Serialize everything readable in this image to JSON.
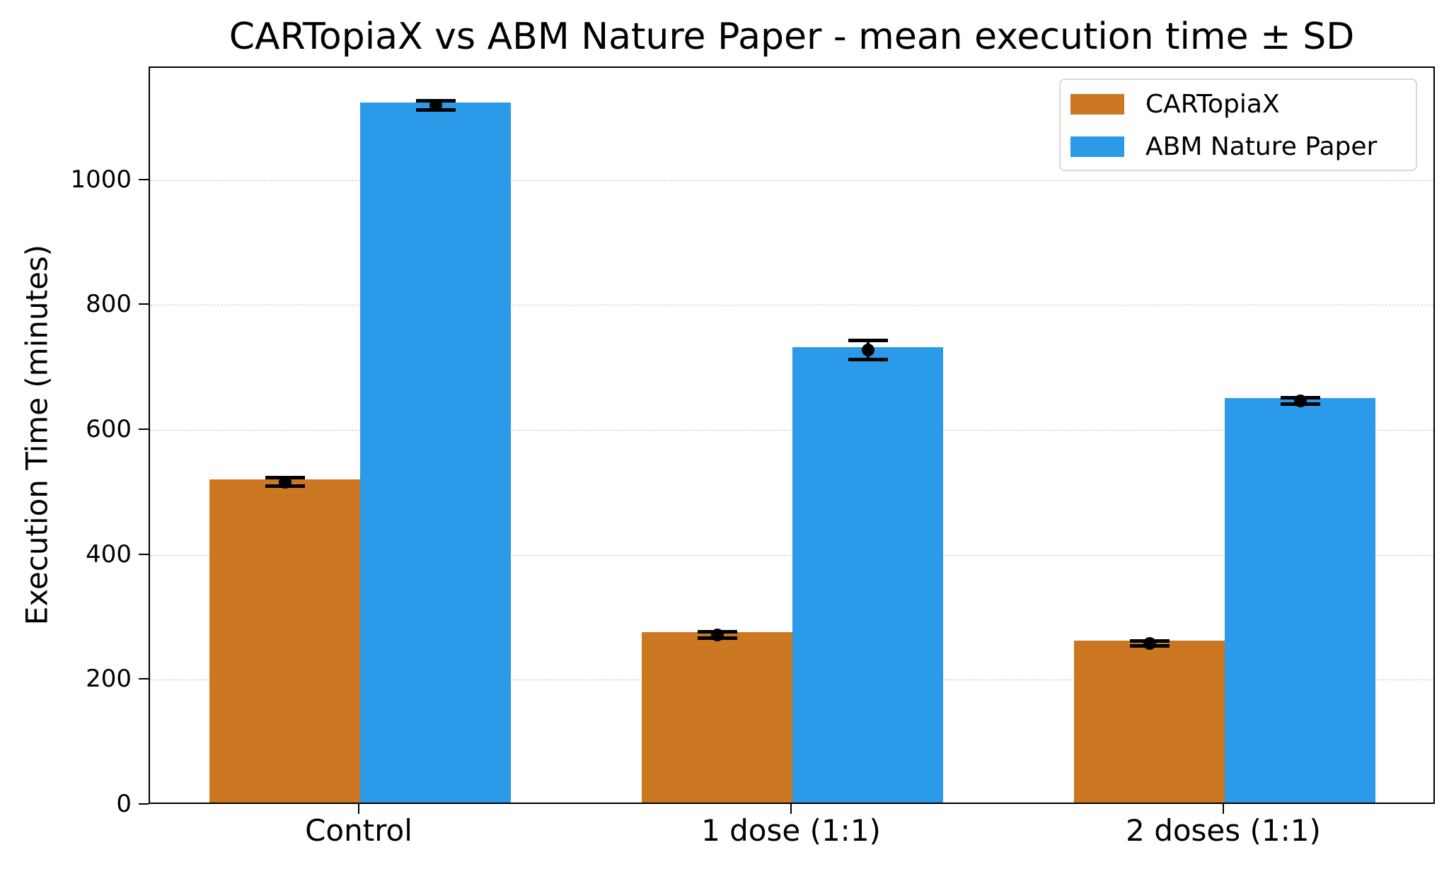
{
  "chart_data": {
    "type": "bar",
    "title": "CARTopiaX vs ABM Nature Paper - mean execution time ± SD",
    "xlabel": "",
    "ylabel": "Execution Time (minutes)",
    "categories": [
      "Control",
      "1 dose (1:1)",
      "2 doses (1:1)"
    ],
    "series": [
      {
        "name": "CARTopiaX",
        "color": "#CC7722",
        "values": [
          518,
          273,
          259
        ],
        "sd": [
          7,
          5,
          4
        ]
      },
      {
        "name": "ABM Nature Paper",
        "color": "#2B9AE8",
        "values": [
          1121,
          729,
          648
        ],
        "sd": [
          7,
          15,
          5
        ]
      }
    ],
    "ylim": [
      0,
      1181
    ],
    "yticks": [
      0,
      200,
      400,
      600,
      800,
      1000
    ],
    "grid": {
      "y": true,
      "style": "dashed"
    },
    "legend_position": "upper right",
    "error_bars": "mean ± SD"
  },
  "labels": {
    "title": "CARTopiaX vs ABM Nature Paper - mean execution time ± SD",
    "ylabel": "Execution Time (minutes)",
    "yticks": [
      "0",
      "200",
      "400",
      "600",
      "800",
      "1000"
    ],
    "xticks": [
      "Control",
      "1 dose (1:1)",
      "2 doses (1:1)"
    ],
    "legend": [
      "CARTopiaX",
      "ABM Nature Paper"
    ]
  }
}
